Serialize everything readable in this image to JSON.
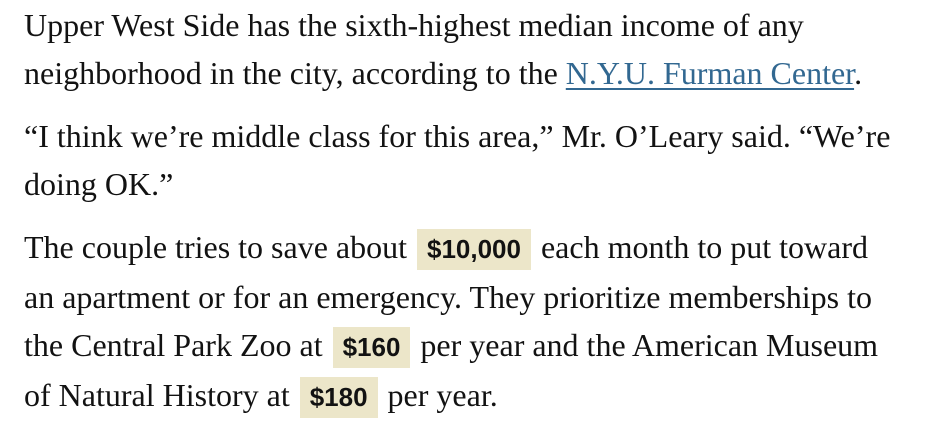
{
  "colors": {
    "page_background": "#ffffff",
    "body_text": "#121212",
    "link": "#326891",
    "highlight_background": "#ece6c9"
  },
  "article": {
    "paragraphs": [
      {
        "name": "income-ranking",
        "text_before_link": "Upper West Side has the sixth-highest median income of any neighborhood in the city, according to the ",
        "link_label": "N.Y.U. Furman Center",
        "text_after_link": "."
      },
      {
        "name": "quote",
        "text": "“I think we’re middle class for this area,” Mr. O’Leary said. “We’re doing OK.”"
      },
      {
        "name": "savings-and-memberships",
        "segments": [
          {
            "type": "text",
            "text": "The couple tries to save about "
          },
          {
            "type": "highlight",
            "text": "$10,000"
          },
          {
            "type": "text",
            "text": " each month to put toward an apartment or for an emergency. They prioritize memberships to the Central Park Zoo at "
          },
          {
            "type": "highlight",
            "text": "$160"
          },
          {
            "type": "text",
            "text": " per year and the American Museum of Natural History at "
          },
          {
            "type": "highlight",
            "text": "$180"
          },
          {
            "type": "text",
            "text": " per year."
          }
        ]
      }
    ]
  }
}
